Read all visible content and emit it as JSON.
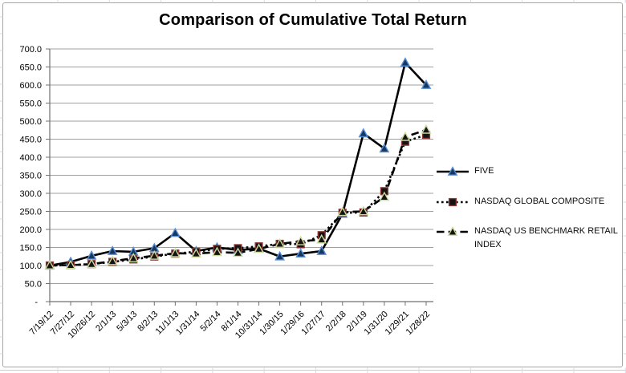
{
  "chart_data": {
    "type": "line",
    "title": "Comparison of Cumulative Total Return",
    "categories": [
      "7/19/12",
      "7/27/12",
      "10/26/12",
      "2/1/13",
      "5/3/13",
      "8/2/13",
      "11/1/13",
      "1/31/14",
      "5/2/14",
      "8/1/14",
      "10/31/14",
      "1/30/15",
      "1/29/16",
      "1/27/17",
      "2/2/18",
      "2/1/19",
      "1/31/20",
      "1/29/21",
      "1/28/22"
    ],
    "series": [
      {
        "name": "FIVE",
        "values": [
          100,
          110,
          127,
          140,
          138,
          148,
          190,
          140,
          150,
          143,
          147,
          125,
          133,
          140,
          243,
          466,
          424,
          662,
          600
        ],
        "line_style": "solid",
        "line_color": "#000000",
        "marker": "triangle",
        "marker_fill": "#17375E",
        "marker_stroke": "#558ED5"
      },
      {
        "name": "NASDAQ GLOBAL COMPOSITE",
        "values": [
          100,
          101,
          104,
          110,
          117,
          125,
          133,
          138,
          146,
          148,
          153,
          160,
          159,
          184,
          246,
          247,
          306,
          443,
          462
        ],
        "line_style": "dotted",
        "line_color": "#000000",
        "marker": "square",
        "marker_fill": "#141414",
        "marker_stroke": "#8C3836"
      },
      {
        "name": "NASDAQ US BENCHMARK RETAIL INDEX",
        "values": [
          100,
          101,
          104,
          112,
          120,
          127,
          134,
          133,
          137,
          135,
          146,
          160,
          167,
          172,
          248,
          250,
          290,
          456,
          476
        ],
        "line_style": "dashed",
        "line_color": "#000000",
        "marker": "triangle",
        "marker_fill": "#141414",
        "marker_stroke": "#C9DA9A"
      }
    ],
    "ylim": [
      0,
      700
    ],
    "ytick_step": 50,
    "ytick_labels": [
      "-",
      "50.0",
      "100.0",
      "150.0",
      "200.0",
      "250.0",
      "300.0",
      "350.0",
      "400.0",
      "450.0",
      "500.0",
      "550.0",
      "600.0",
      "650.0",
      "700.0"
    ],
    "grid": true,
    "legend_position": "right",
    "axis_color": "#707070",
    "gridline_color": "#9f9f9f",
    "tick_label_color": "#000000"
  }
}
